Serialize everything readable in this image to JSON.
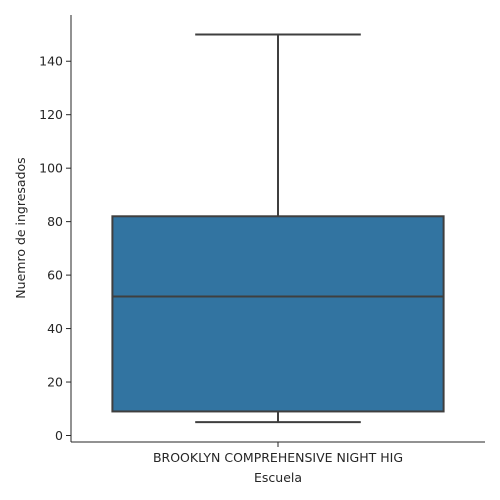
{
  "chart_data": {
    "type": "box",
    "xlabel": "Escuela",
    "ylabel": "Nuemro de ingresados",
    "categories": [
      "BROOKLYN COMPREHENSIVE NIGHT HIG"
    ],
    "ylim": [
      -2,
      157
    ],
    "yticks": [
      0,
      20,
      40,
      60,
      80,
      100,
      120,
      140
    ],
    "ytick_labels": [
      "0",
      "20",
      "40",
      "60",
      "80",
      "100",
      "120",
      "140"
    ],
    "boxes": [
      {
        "category": "BROOKLYN COMPREHENSIVE NIGHT HIG",
        "whisker_low": 5,
        "q1": 9,
        "median": 52,
        "q3": 82,
        "whisker_high": 150
      }
    ],
    "colors": {
      "box_fill": "#3274a1",
      "line": "#3f3f3f",
      "axis": "#262626"
    },
    "grid": false,
    "legend": "none"
  }
}
